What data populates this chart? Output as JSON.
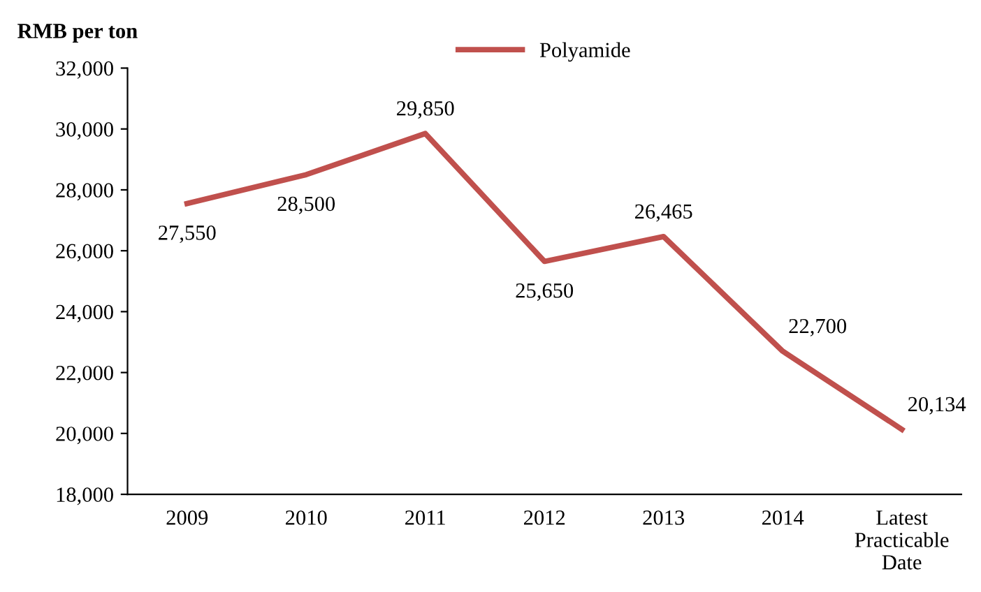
{
  "chart_data": {
    "type": "line",
    "ylabel": "RMB per ton",
    "categories": [
      "2009",
      "2010",
      "2011",
      "2012",
      "2013",
      "2014",
      "Latest\nPracticable\nDate"
    ],
    "series": [
      {
        "name": "Polyamide",
        "color": "#c0504d",
        "values": [
          27550,
          28500,
          29850,
          25650,
          26465,
          22700,
          20134
        ],
        "value_labels": [
          "27,550",
          "28,500",
          "29,850",
          "25,650",
          "26,465",
          "22,700",
          "20,134"
        ]
      }
    ],
    "ylim": [
      18000,
      32000
    ],
    "yticks": [
      {
        "value": 18000,
        "label": "18,000"
      },
      {
        "value": 20000,
        "label": "20,000"
      },
      {
        "value": 22000,
        "label": "22,000"
      },
      {
        "value": 24000,
        "label": "24,000"
      },
      {
        "value": 26000,
        "label": "26,000"
      },
      {
        "value": 28000,
        "label": "28,000"
      },
      {
        "value": 30000,
        "label": "30,000"
      },
      {
        "value": 32000,
        "label": "32,000"
      }
    ],
    "legend": "top",
    "grid": false,
    "marker": "none",
    "line_style": "solid"
  }
}
